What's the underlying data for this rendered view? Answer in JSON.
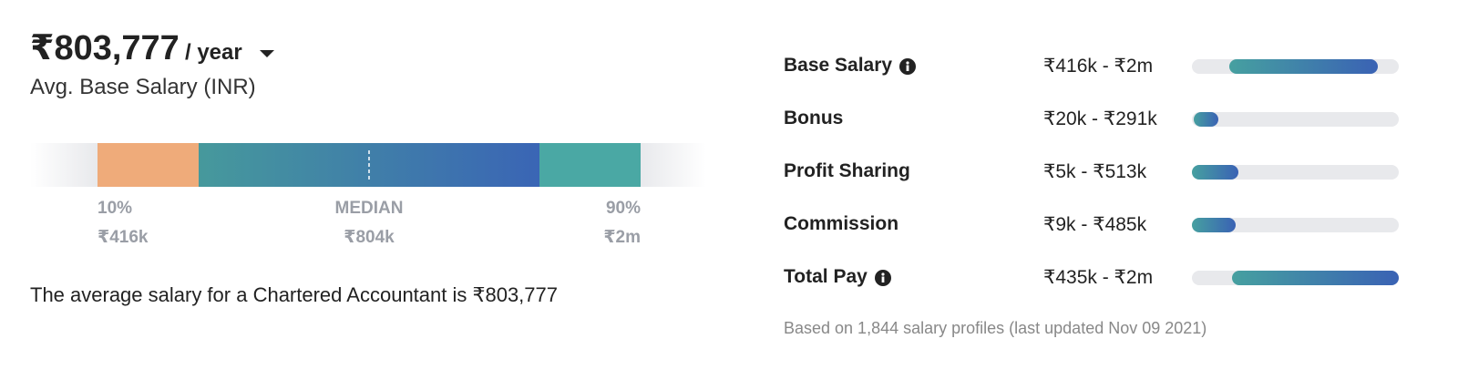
{
  "summary": {
    "amount": "₹803,777",
    "period": "/ year",
    "label": "Avg. Base Salary (INR)"
  },
  "distribution": {
    "low": {
      "percentile": "10%",
      "value": "₹416k"
    },
    "median": {
      "label": "MEDIAN",
      "value": "₹804k"
    },
    "high": {
      "percentile": "90%",
      "value": "₹2m"
    }
  },
  "description": "The average salary for a Chartered Accountant is ₹803,777",
  "pay_rows": [
    {
      "label": "Base Salary",
      "range": "₹416k - ₹2m",
      "info": true
    },
    {
      "label": "Bonus",
      "range": "₹20k - ₹291k",
      "info": false
    },
    {
      "label": "Profit Sharing",
      "range": "₹5k - ₹513k",
      "info": false
    },
    {
      "label": "Commission",
      "range": "₹9k - ₹485k",
      "info": false
    },
    {
      "label": "Total Pay",
      "range": "₹435k - ₹2m",
      "info": true
    }
  ],
  "footnote": "Based on 1,844 salary profiles (last updated Nov 09 2021)"
}
